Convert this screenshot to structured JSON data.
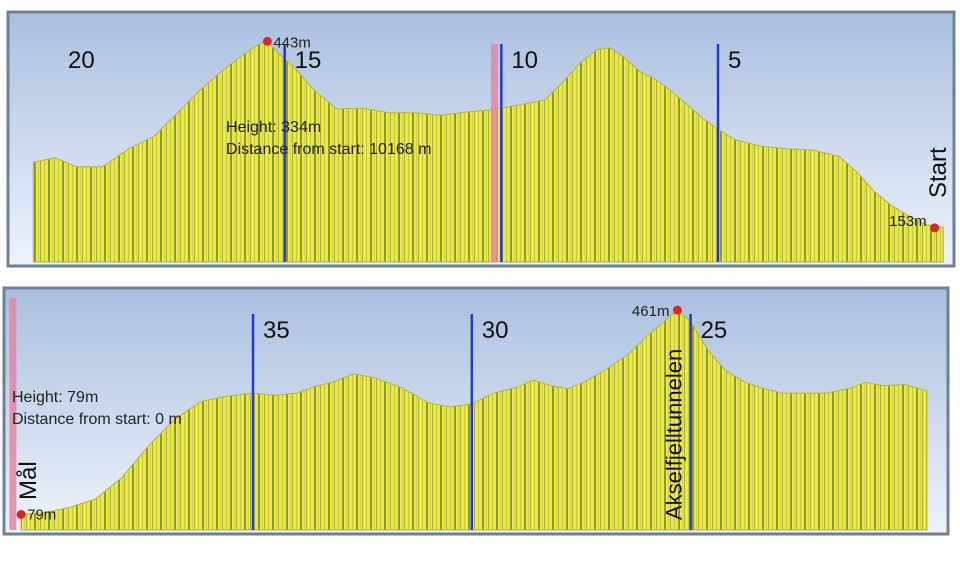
{
  "chart_data": [
    {
      "type": "area",
      "x_direction": "decreasing",
      "xlim": [
        21.2,
        -0.4
      ],
      "ylim": [
        100,
        470
      ],
      "km_markers": [
        {
          "km": 20,
          "label": "20",
          "line": false
        },
        {
          "km": 15,
          "label": "15",
          "line": true
        },
        {
          "km": 10,
          "label": "10",
          "line": true
        },
        {
          "km": 5,
          "label": "5",
          "line": true
        }
      ],
      "end_label": "Start",
      "cursor": {
        "km": 10.17,
        "height_label": "Height: 334m",
        "distance_label": "Distance from start: 10168 m"
      },
      "points_labeled": [
        {
          "km": 15.4,
          "y": 443,
          "label": "443m"
        },
        {
          "km": 0.0,
          "y": 153,
          "label": "153m"
        }
      ],
      "profile": {
        "x": [
          20.8,
          20.3,
          19.8,
          19.2,
          18.6,
          18.0,
          17.5,
          17.0,
          16.5,
          16.0,
          15.6,
          15.4,
          15.2,
          14.8,
          14.3,
          13.8,
          13.2,
          12.6,
          12.0,
          11.4,
          10.8,
          10.2,
          9.6,
          9.0,
          8.6,
          8.2,
          7.8,
          7.5,
          7.2,
          6.8,
          6.5,
          6.2,
          5.8,
          5.4,
          5.0,
          4.6,
          4.0,
          3.4,
          2.8,
          2.2,
          1.8,
          1.4,
          1.0,
          0.6,
          0.2,
          -0.2
        ],
        "y": [
          255,
          262,
          248,
          248,
          276,
          296,
          330,
          364,
          394,
          420,
          438,
          443,
          428,
          404,
          366,
          338,
          339,
          332,
          332,
          328,
          333,
          337,
          344,
          352,
          378,
          408,
          430,
          433,
          420,
          396,
          386,
          372,
          350,
          326,
          306,
          290,
          280,
          276,
          274,
          264,
          240,
          210,
          188,
          172,
          158,
          154
        ]
      }
    },
    {
      "type": "area",
      "x_direction": "decreasing",
      "xlim": [
        40.6,
        19.3
      ],
      "ylim": [
        50,
        480
      ],
      "km_markers": [
        {
          "km": 35,
          "label": "35",
          "line": true
        },
        {
          "km": 30,
          "label": "30",
          "line": true
        },
        {
          "km": 25,
          "label": "25",
          "line": true
        }
      ],
      "end_label": "Mål",
      "tunnel_label": "Akselfjelltunnelen",
      "cursor": {
        "km": 40.5,
        "height_label": "Height: 79m",
        "distance_label": "Distance from start: 0 m"
      },
      "points_labeled": [
        {
          "km": 40.3,
          "y": 79,
          "label": "79m"
        },
        {
          "km": 25.3,
          "y": 461,
          "label": "461m"
        }
      ],
      "profile": {
        "x": [
          40.3,
          39.8,
          39.2,
          38.6,
          38.0,
          37.4,
          36.8,
          36.2,
          35.6,
          35.0,
          34.5,
          34.0,
          33.6,
          33.2,
          32.7,
          32.2,
          31.6,
          31.0,
          30.5,
          30.0,
          29.5,
          29.0,
          28.6,
          28.2,
          27.8,
          27.4,
          26.9,
          26.4,
          26.0,
          25.6,
          25.3,
          25.0,
          24.6,
          24.2,
          23.8,
          23.4,
          22.9,
          22.4,
          21.9,
          21.4,
          21.0,
          20.6,
          20.1,
          19.6
        ],
        "y": [
          79,
          82,
          92,
          108,
          148,
          206,
          256,
          290,
          300,
          306,
          302,
          306,
          318,
          326,
          342,
          334,
          316,
          288,
          280,
          286,
          306,
          316,
          330,
          320,
          314,
          328,
          352,
          380,
          412,
          440,
          461,
          440,
          386,
          348,
          328,
          316,
          306,
          306,
          306,
          314,
          326,
          320,
          322,
          310
        ]
      }
    }
  ]
}
